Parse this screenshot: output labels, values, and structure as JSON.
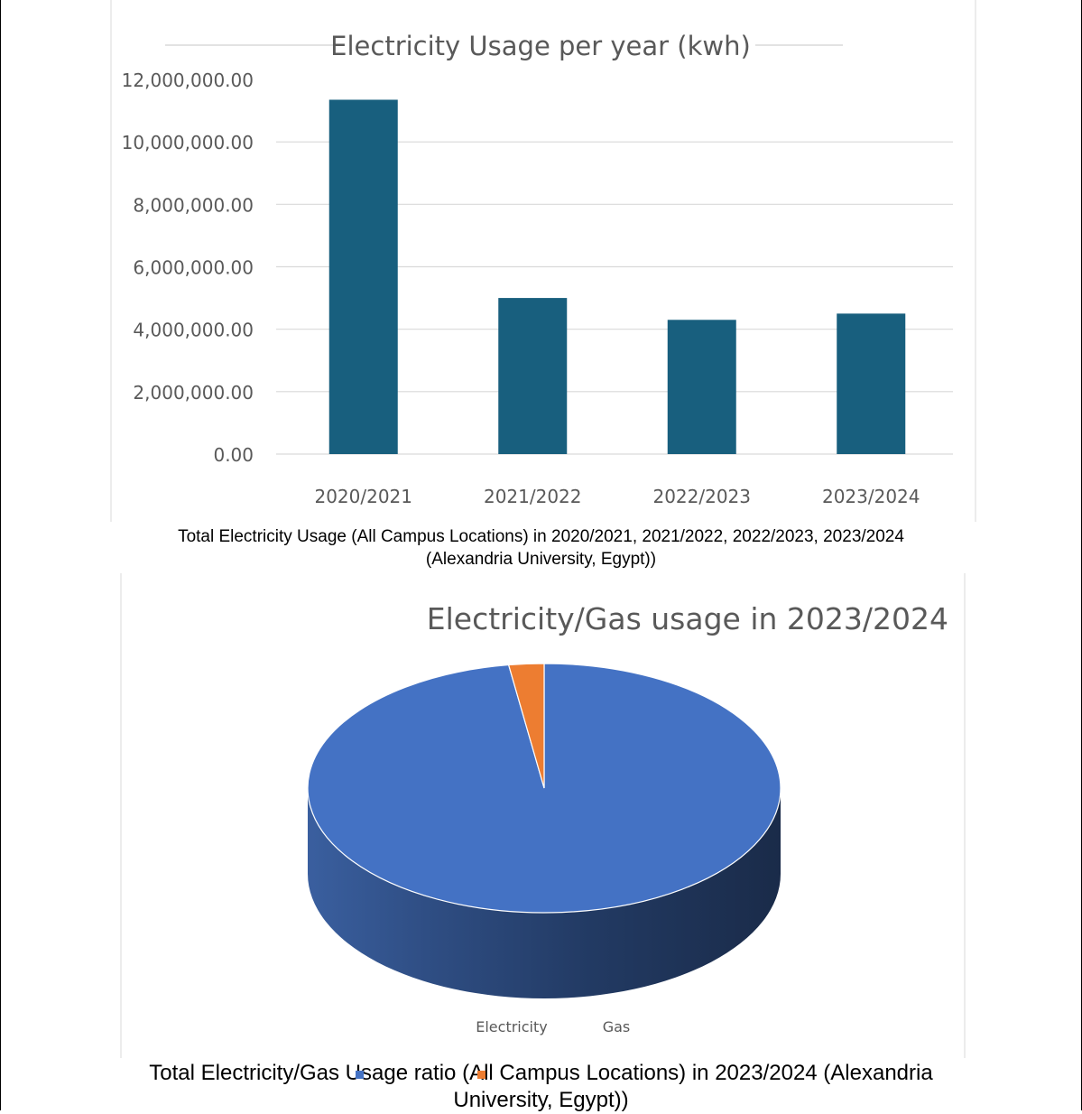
{
  "bar_chart": {
    "title": "Electricity Usage per year (kwh)",
    "y_tick_labels": [
      "0.00",
      "2,000,000.00",
      "4,000,000.00",
      "6,000,000.00",
      "8,000,000.00",
      "10,000,000.00",
      "12,000,000.00"
    ],
    "bar_color": "#185f7e"
  },
  "caption1": {
    "line1": "Total Electricity Usage (All Campus Locations) in 2020/2021, 2021/2022, 2022/2023, 2023/2024",
    "line2": "(Alexandria University, Egypt))"
  },
  "pie_chart": {
    "title": "Electricity/Gas usage in 2023/2024",
    "legend": [
      {
        "label": "Electricity",
        "color": "#4472c4"
      },
      {
        "label": "Gas",
        "color": "#ed7d31"
      }
    ]
  },
  "caption2": {
    "line1": "Total Electricity/Gas Usage ratio (All Campus Locations) in 2023/2024 (Alexandria",
    "line2": "University, Egypt))"
  },
  "chart_data": [
    {
      "type": "bar",
      "title": "Electricity Usage per year (kwh)",
      "categories": [
        "2020/2021",
        "2021/2022",
        "2022/2023",
        "2023/2024"
      ],
      "values": [
        11350000,
        5000000,
        4300000,
        4500000
      ],
      "ylim": [
        0,
        12000000
      ],
      "grid": true,
      "color": "#185f7e"
    },
    {
      "type": "pie",
      "title": "Electricity/Gas usage in 2023/2024",
      "categories": [
        "Electricity",
        "Gas"
      ],
      "values": [
        97.6,
        2.4
      ],
      "colors": [
        "#4472c4",
        "#ed7d31"
      ],
      "legend": "bottom"
    }
  ]
}
